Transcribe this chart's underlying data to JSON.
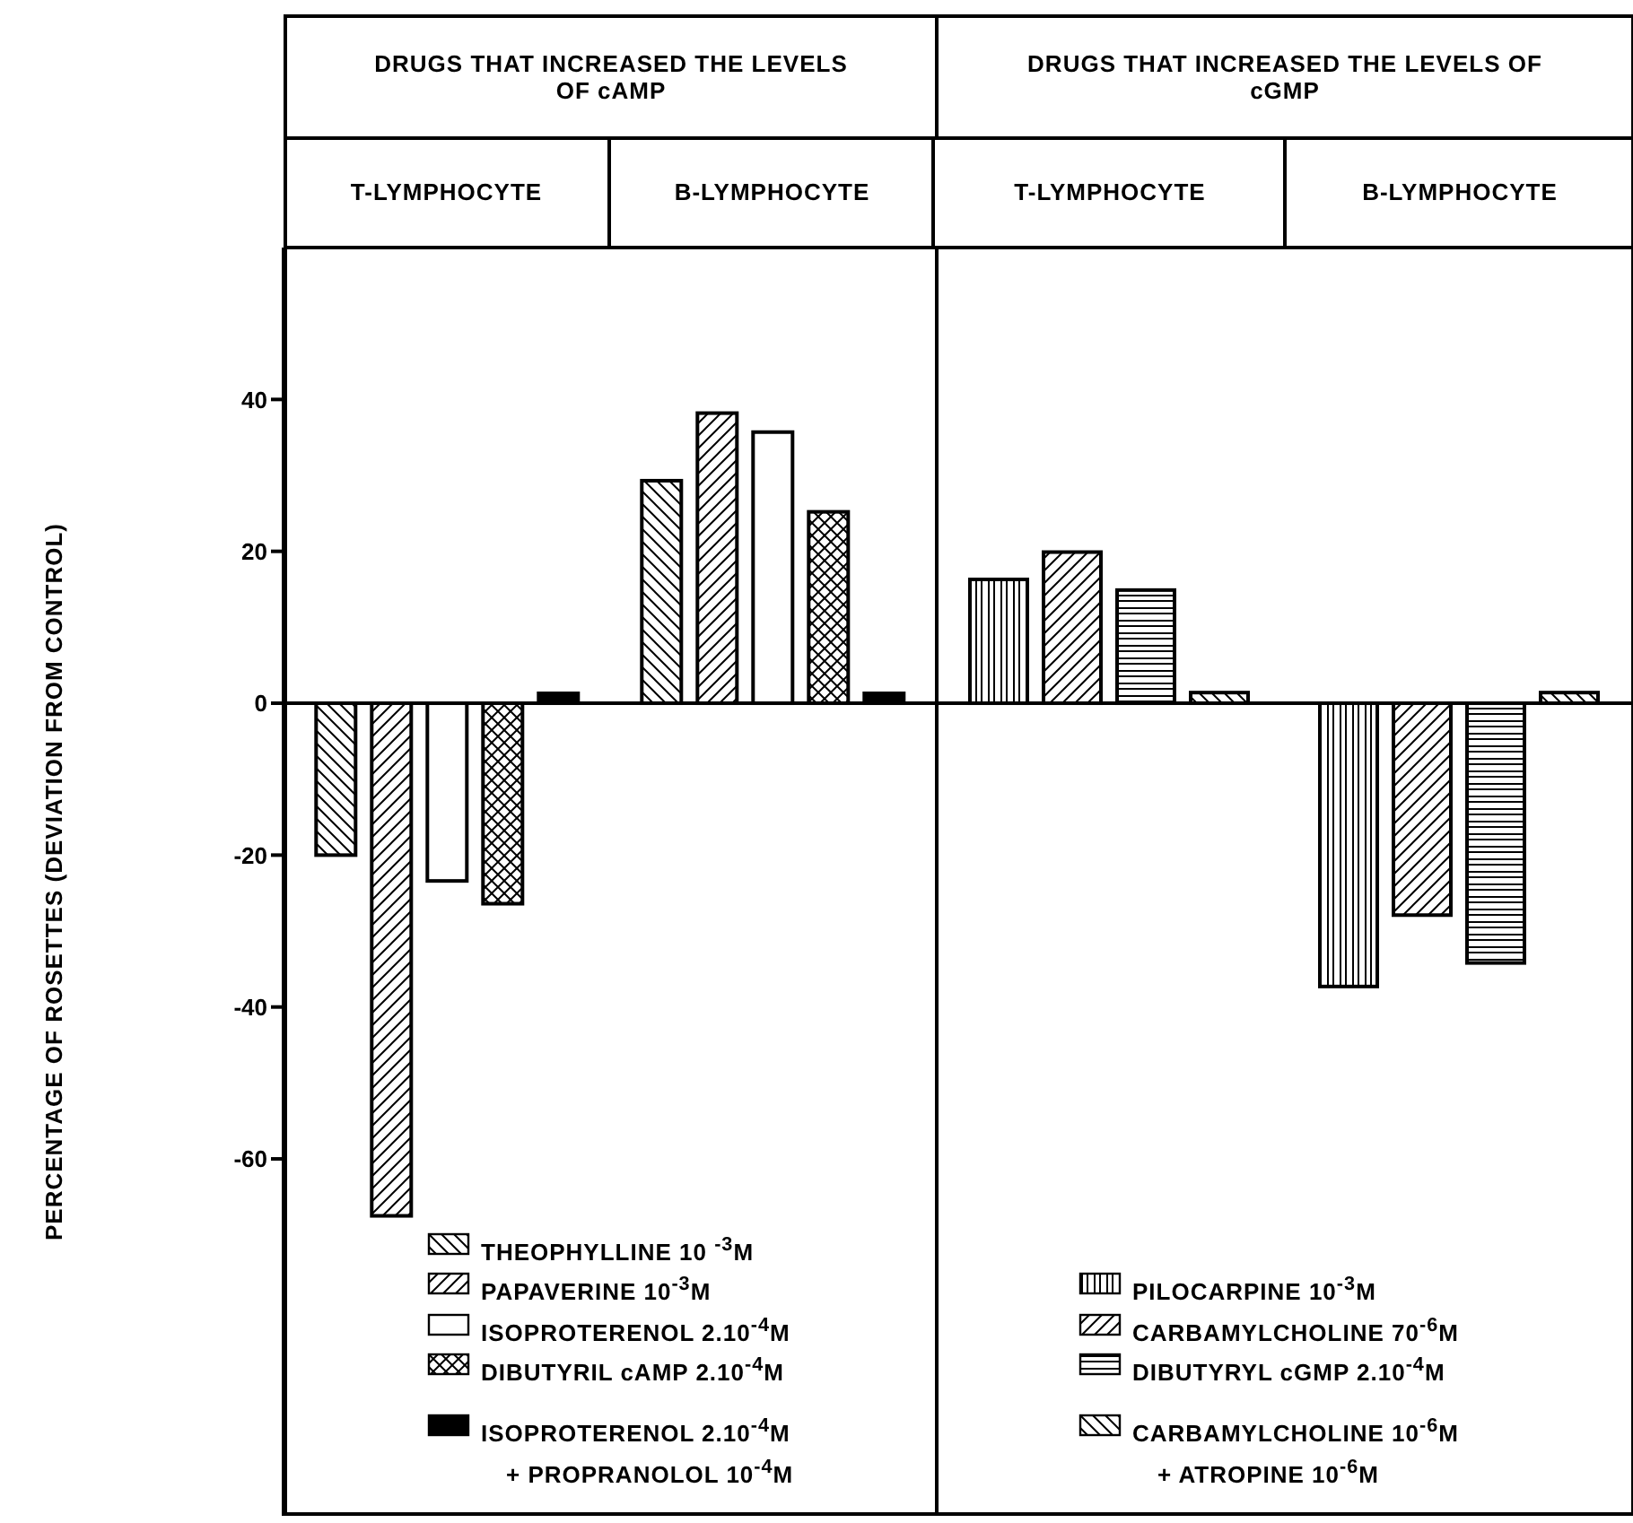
{
  "chart_data": [
    {
      "type": "bar",
      "title": "DRUGS THAT INCREASED THE LEVELS OF cAMP",
      "ylabel": "PERCENTAGE OF ROSETTES (DEVIATION FROM CONTROL)",
      "categories": [
        "T-LYMPHOCYTE",
        "B-LYMPHOCYTE"
      ],
      "series": [
        {
          "name": "THEOPHYLLINE 10 $^{-3}$M",
          "color": "#000000",
          "values": [
            -20,
            29.3
          ]
        },
        {
          "name": "PAPAVERINE 10$^{-3}$M",
          "color": "#000000",
          "values": [
            -67.5,
            38.2
          ]
        },
        {
          "name": "ISOPROTERENOL 2.10$^{-4}$M",
          "color": "#000000",
          "values": [
            -23.4,
            35.7
          ]
        },
        {
          "name": "DIBUTYRIL cAMP 2.10$^{-4}$M",
          "color": "#000000",
          "values": [
            -26.4,
            25.2
          ]
        },
        {
          "name": "ISOPROTERENOL 2.10$^{-4}$M\n+ PROPRANOLOL 10$^{-4}$M",
          "color": "#000000",
          "values": [
            1.3,
            1.3
          ]
        }
      ],
      "ylim": [
        -107,
        60
      ],
      "yticks": [
        -60,
        -40,
        -20,
        0,
        20,
        40
      ],
      "ref_lines": [
        {
          "axis": "y",
          "value": 0
        }
      ],
      "legend": "bottom",
      "grid": false
    },
    {
      "type": "bar",
      "title": "DRUGS THAT INCREASED THE LEVELS OF cGMP",
      "categories": [
        "T-LYMPHOCYTE",
        "B-LYMPHOCYTE"
      ],
      "series": [
        {
          "name": "PILOCARPINE 10$^{-3}$M",
          "color": "#000000",
          "values": [
            16.3,
            -37.3
          ]
        },
        {
          "name": "CARBAMYLCHOLINE 70$^{-6}$M",
          "color": "#000000",
          "values": [
            19.9,
            -27.9
          ]
        },
        {
          "name": "DIBUTYRYL cGMP 2.10$^{-4}$M",
          "color": "#000000",
          "values": [
            14.9,
            -34.2
          ]
        },
        {
          "name": "CARBAMYLCHOLINE 10$^{-6}$M\n+ ATROPINE 10$^{-6}$M",
          "color": "#000000",
          "values": [
            1.4,
            1.4
          ]
        }
      ],
      "ylim": [
        -107,
        60
      ],
      "ref_lines": [
        {
          "axis": "y",
          "value": 0
        }
      ],
      "legend": "bottom",
      "grid": false,
      "tick_labels": "x"
    }
  ]
}
